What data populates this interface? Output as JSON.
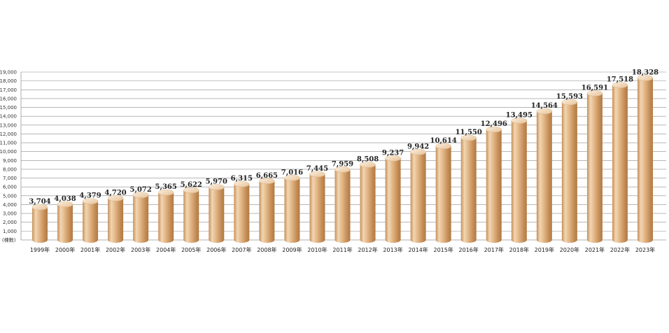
{
  "chart_data": {
    "type": "bar",
    "categories": [
      "1999年",
      "2000年",
      "2001年",
      "2002年",
      "2003年",
      "2004年",
      "2005年",
      "2006年",
      "2007年",
      "2008年",
      "2009年",
      "2010年",
      "2011年",
      "2012年",
      "2013年",
      "2014年",
      "2015年",
      "2016年",
      "2017年",
      "2018年",
      "2019年",
      "2020年",
      "2021年",
      "2022年",
      "2023年"
    ],
    "values": [
      3704,
      4038,
      4379,
      4720,
      5072,
      5365,
      5622,
      5970,
      6315,
      6665,
      7016,
      7445,
      7959,
      8508,
      9237,
      9942,
      10614,
      11550,
      12496,
      13495,
      14564,
      15593,
      16591,
      17518,
      18328
    ],
    "value_labels": [
      "3,704",
      "4,038",
      "4,379",
      "4,720",
      "5,072",
      "5,365",
      "5,622",
      "5,970",
      "6,315",
      "6,665",
      "7,016",
      "7,445",
      "7,959",
      "8,508",
      "9,237",
      "9,942",
      "10,614",
      "11,550",
      "12,496",
      "13,495",
      "14,564",
      "15,593",
      "16,591",
      "17,518",
      "18,328"
    ],
    "y_ticks": [
      "1,000",
      "2,000",
      "3,000",
      "4,000",
      "5,000",
      "6,000",
      "7,000",
      "8,000",
      "9,000",
      "10,000",
      "11,000",
      "12,000",
      "13,000",
      "14,000",
      "15,000",
      "16,000",
      "17,000",
      "18,000",
      "19,000"
    ],
    "y_unit": "(棟数)",
    "ylim": [
      0,
      19000
    ],
    "grid": true,
    "bar_color": "#d4a06a",
    "bar_highlight": "#f4dcbc",
    "bar_shadow": "#b07a45",
    "style": "3d-cylinder"
  }
}
